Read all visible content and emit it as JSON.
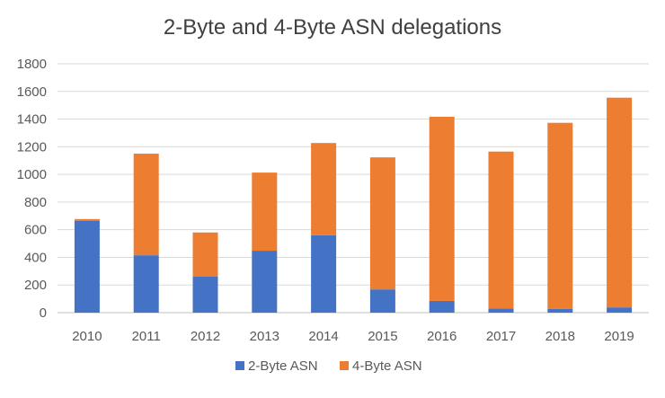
{
  "chart_data": {
    "type": "bar",
    "stacked": true,
    "title": "2-Byte and 4-Byte ASN delegations",
    "xlabel": "",
    "ylabel": "",
    "categories": [
      "2010",
      "2011",
      "2012",
      "2013",
      "2014",
      "2015",
      "2016",
      "2017",
      "2018",
      "2019"
    ],
    "series": [
      {
        "name": "2-Byte ASN",
        "color": "#4472C4",
        "values": [
          665,
          415,
          260,
          448,
          560,
          168,
          85,
          30,
          28,
          38
        ]
      },
      {
        "name": "4-Byte ASN",
        "color": "#ED7D31",
        "values": [
          12,
          735,
          320,
          565,
          667,
          955,
          1332,
          1135,
          1345,
          1517
        ]
      }
    ],
    "ylim": [
      0,
      1800
    ],
    "yticks": [
      0,
      200,
      400,
      600,
      800,
      1000,
      1200,
      1400,
      1600,
      1800
    ],
    "grid": true,
    "legend_position": "bottom"
  }
}
